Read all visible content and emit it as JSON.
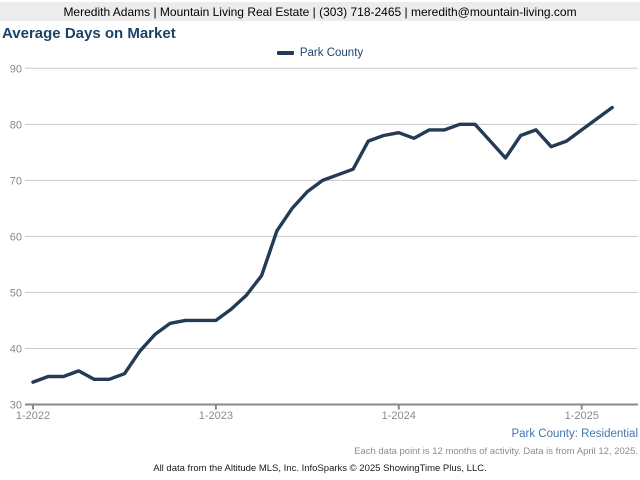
{
  "header": {
    "contact_line": "Meredith Adams | Mountain Living Real Estate | (303) 718-2465 | meredith@mountain-living.com"
  },
  "title": "Average Days on Market",
  "legend": {
    "series_label": "Park County"
  },
  "footer": {
    "segment_label": "Park County: Residential",
    "data_note": "Each data point is 12 months of activity. Data is from April 12, 2025.",
    "attribution": "All data from the Altitude MLS, Inc. InfoSparks © 2025 ShowingTime Plus, LLC."
  },
  "colors": {
    "header_bg": "#ececec",
    "title_text": "#1d4268",
    "legend_text": "#21456f",
    "line": "#243a55",
    "grid": "#c9c9c9",
    "axis": "#8a8a8a",
    "tick_label": "#8a8a8a",
    "footer_blue": "#4576ad",
    "footer_gray": "#8c8c8c",
    "footer_black": "#1a1a1a"
  },
  "chart_data": {
    "type": "line",
    "title": "Average Days on Market",
    "xlabel": "",
    "ylabel": "",
    "ylim": [
      30,
      90
    ],
    "y_ticks": [
      30,
      40,
      50,
      60,
      70,
      80,
      90
    ],
    "grid": true,
    "legend_position": "top-center",
    "x": [
      "2022-01",
      "2022-02",
      "2022-03",
      "2022-04",
      "2022-05",
      "2022-06",
      "2022-07",
      "2022-08",
      "2022-09",
      "2022-10",
      "2022-11",
      "2022-12",
      "2023-01",
      "2023-02",
      "2023-03",
      "2023-04",
      "2023-05",
      "2023-06",
      "2023-07",
      "2023-08",
      "2023-09",
      "2023-10",
      "2023-11",
      "2023-12",
      "2024-01",
      "2024-02",
      "2024-03",
      "2024-04",
      "2024-05",
      "2024-06",
      "2024-07",
      "2024-08",
      "2024-09",
      "2024-10",
      "2024-11",
      "2024-12",
      "2025-01",
      "2025-02",
      "2025-03"
    ],
    "x_tick_labels": [
      "1-2022",
      "1-2023",
      "1-2024",
      "1-2025"
    ],
    "x_tick_positions": [
      0,
      12,
      24,
      36
    ],
    "series": [
      {
        "name": "Park County",
        "color": "#243a55",
        "values": [
          34,
          35,
          35,
          36,
          34.5,
          34.5,
          35.5,
          39.5,
          42.5,
          44.5,
          45,
          45,
          45,
          47,
          49.5,
          53,
          61,
          65,
          68,
          70,
          71,
          72,
          77,
          78,
          78.5,
          77.5,
          79,
          79,
          80,
          80,
          77,
          74,
          78,
          79,
          76,
          77,
          79,
          81,
          83
        ]
      }
    ]
  }
}
